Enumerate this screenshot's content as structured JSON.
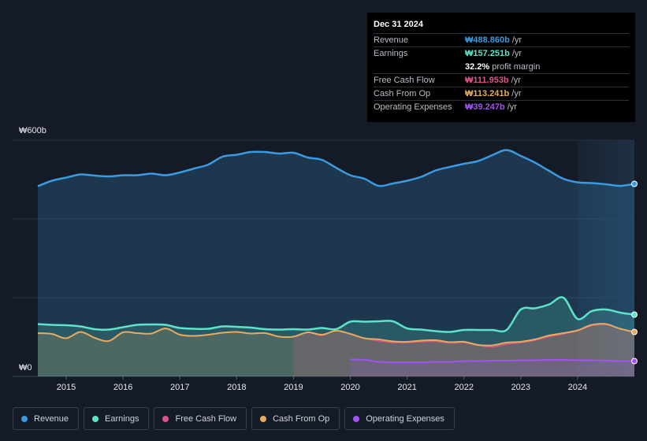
{
  "tooltip": {
    "date": "Dec 31 2024",
    "rows": [
      {
        "label": "Revenue",
        "value": "₩488.860b",
        "unit": "/yr",
        "color": "#3b9ae1"
      },
      {
        "label": "Earnings",
        "value": "₩157.251b",
        "unit": "/yr",
        "color": "#5de3c9"
      },
      {
        "label": "",
        "value": "32.2%",
        "unit": "profit margin",
        "color": "#ffffff"
      },
      {
        "label": "Free Cash Flow",
        "value": "₩111.953b",
        "unit": "/yr",
        "color": "#e0528f"
      },
      {
        "label": "Cash From Op",
        "value": "₩113.241b",
        "unit": "/yr",
        "color": "#e8ab5e"
      },
      {
        "label": "Operating Expenses",
        "value": "₩39.247b",
        "unit": "/yr",
        "color": "#a154f2"
      }
    ]
  },
  "legend": [
    {
      "label": "Revenue",
      "color": "#3b9ae1"
    },
    {
      "label": "Earnings",
      "color": "#5de3c9"
    },
    {
      "label": "Free Cash Flow",
      "color": "#e0528f"
    },
    {
      "label": "Cash From Op",
      "color": "#e8ab5e"
    },
    {
      "label": "Operating Expenses",
      "color": "#a154f2"
    }
  ],
  "chart_data": {
    "type": "area",
    "y_axis_labels": [
      "₩600b",
      "₩0"
    ],
    "ylim": [
      0,
      600
    ],
    "xlim": [
      2014.5,
      2025.0
    ],
    "x_ticks": [
      2015,
      2016,
      2017,
      2018,
      2019,
      2020,
      2021,
      2022,
      2023,
      2024
    ],
    "x_tick_labels": [
      "2015",
      "2016",
      "2017",
      "2018",
      "2019",
      "2020",
      "2021",
      "2022",
      "2023",
      "2024"
    ],
    "forecast_start": 2024.0,
    "series": [
      {
        "name": "Revenue",
        "color": "#3b9ae1",
        "x": [
          2014.5,
          2014.75,
          2015.0,
          2015.25,
          2015.5,
          2015.75,
          2016.0,
          2016.25,
          2016.5,
          2016.75,
          2017.0,
          2017.25,
          2017.5,
          2017.75,
          2018.0,
          2018.25,
          2018.5,
          2018.75,
          2019.0,
          2019.25,
          2019.5,
          2019.75,
          2020.0,
          2020.25,
          2020.5,
          2020.75,
          2021.0,
          2021.25,
          2021.5,
          2021.75,
          2022.0,
          2022.25,
          2022.5,
          2022.75,
          2023.0,
          2023.25,
          2023.5,
          2023.75,
          2024.0,
          2024.25,
          2024.5,
          2024.75,
          2025.0
        ],
        "values": [
          483,
          497,
          505,
          513,
          510,
          508,
          511,
          511,
          515,
          511,
          518,
          528,
          538,
          558,
          563,
          570,
          570,
          566,
          568,
          556,
          550,
          530,
          511,
          502,
          484,
          490,
          497,
          507,
          523,
          532,
          540,
          547,
          562,
          575,
          560,
          543,
          522,
          502,
          493,
          491,
          488,
          484,
          489
        ]
      },
      {
        "name": "Earnings",
        "color": "#5de3c9",
        "x": [
          2014.5,
          2014.75,
          2015.0,
          2015.25,
          2015.5,
          2015.75,
          2016.0,
          2016.25,
          2016.5,
          2016.75,
          2017.0,
          2017.25,
          2017.5,
          2017.75,
          2018.0,
          2018.25,
          2018.5,
          2018.75,
          2019.0,
          2019.25,
          2019.5,
          2019.75,
          2020.0,
          2020.25,
          2020.5,
          2020.75,
          2021.0,
          2021.25,
          2021.5,
          2021.75,
          2022.0,
          2022.25,
          2022.5,
          2022.75,
          2023.0,
          2023.25,
          2023.5,
          2023.75,
          2024.0,
          2024.25,
          2024.5,
          2024.75,
          2025.0
        ],
        "values": [
          133,
          131,
          130,
          127,
          120,
          119,
          125,
          131,
          132,
          131,
          123,
          121,
          121,
          127,
          126,
          124,
          120,
          119,
          120,
          119,
          123,
          120,
          139,
          139,
          140,
          140,
          122,
          119,
          115,
          113,
          118,
          118,
          118,
          118,
          170,
          173,
          183,
          200,
          146,
          166,
          170,
          162,
          157
        ]
      },
      {
        "name": "Free Cash Flow",
        "color": "#e0528f",
        "x": [
          2019.0,
          2019.25,
          2019.5,
          2019.75,
          2020.0,
          2020.25,
          2020.5,
          2020.75,
          2021.0,
          2021.25,
          2021.5,
          2021.75,
          2022.0,
          2022.25,
          2022.5,
          2022.75,
          2023.0,
          2023.25,
          2023.5,
          2023.75,
          2024.0,
          2024.25,
          2024.5,
          2024.75,
          2025.0
        ],
        "values": [
          100,
          112,
          104,
          116,
          108,
          97,
          90,
          86,
          86,
          88,
          89,
          85,
          86,
          79,
          75,
          82,
          86,
          92,
          101,
          108,
          116,
          129,
          132,
          121,
          112
        ]
      },
      {
        "name": "Cash From Op",
        "color": "#e8ab5e",
        "x": [
          2014.5,
          2014.75,
          2015.0,
          2015.25,
          2015.5,
          2015.75,
          2016.0,
          2016.25,
          2016.5,
          2016.75,
          2017.0,
          2017.25,
          2017.5,
          2017.75,
          2018.0,
          2018.25,
          2018.5,
          2018.75,
          2019.0,
          2019.25,
          2019.5,
          2019.75,
          2020.0,
          2020.25,
          2020.5,
          2020.75,
          2021.0,
          2021.25,
          2021.5,
          2021.75,
          2022.0,
          2022.25,
          2022.5,
          2022.75,
          2023.0,
          2023.25,
          2023.5,
          2023.75,
          2024.0,
          2024.25,
          2024.5,
          2024.75,
          2025.0
        ],
        "values": [
          110,
          108,
          97,
          113,
          98,
          90,
          112,
          110,
          109,
          122,
          106,
          103,
          106,
          111,
          113,
          109,
          110,
          101,
          101,
          112,
          106,
          116,
          108,
          97,
          94,
          89,
          88,
          91,
          92,
          87,
          88,
          80,
          79,
          86,
          88,
          94,
          104,
          110,
          117,
          131,
          133,
          121,
          113
        ]
      },
      {
        "name": "Operating Expenses",
        "color": "#a154f2",
        "x": [
          2020.0,
          2020.25,
          2020.5,
          2020.75,
          2021.0,
          2021.25,
          2021.5,
          2021.75,
          2022.0,
          2022.25,
          2022.5,
          2022.75,
          2023.0,
          2023.25,
          2023.5,
          2023.75,
          2024.0,
          2024.25,
          2024.5,
          2024.75,
          2025.0
        ],
        "values": [
          43,
          42,
          37,
          36,
          36,
          36,
          37,
          37,
          39,
          39,
          40,
          40,
          41,
          41,
          42,
          42,
          41,
          41,
          40,
          39,
          39
        ]
      }
    ]
  }
}
